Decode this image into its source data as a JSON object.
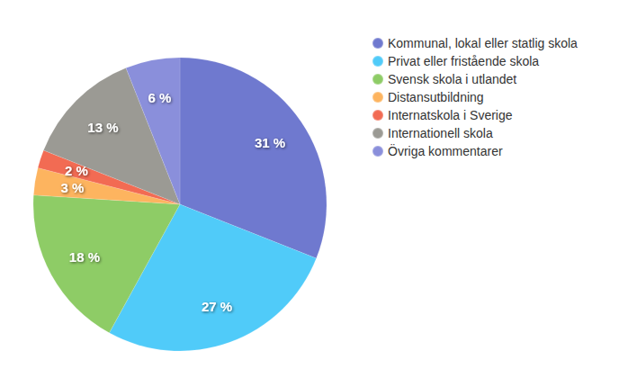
{
  "chart_data": {
    "type": "pie",
    "categories": [
      "Kommunal, lokal eller statlig skola",
      "Privat eller fristående skola",
      "Svensk skola i utlandet",
      "Distansutbildning",
      "Internatskola i Sverige",
      "Internationell skola",
      "Övriga kommentarer"
    ],
    "values": [
      31,
      27,
      18,
      3,
      2,
      13,
      6
    ],
    "value_labels": [
      "31 %",
      "27 %",
      "18 %",
      "3 %",
      "2 %",
      "13 %",
      "6 %"
    ],
    "colors": [
      "#6f79cf",
      "#50cbf9",
      "#8ecc66",
      "#fdb45f",
      "#f26b53",
      "#9b9a94",
      "#8a8fdb"
    ],
    "data_labels": true,
    "legend": "top-right"
  }
}
